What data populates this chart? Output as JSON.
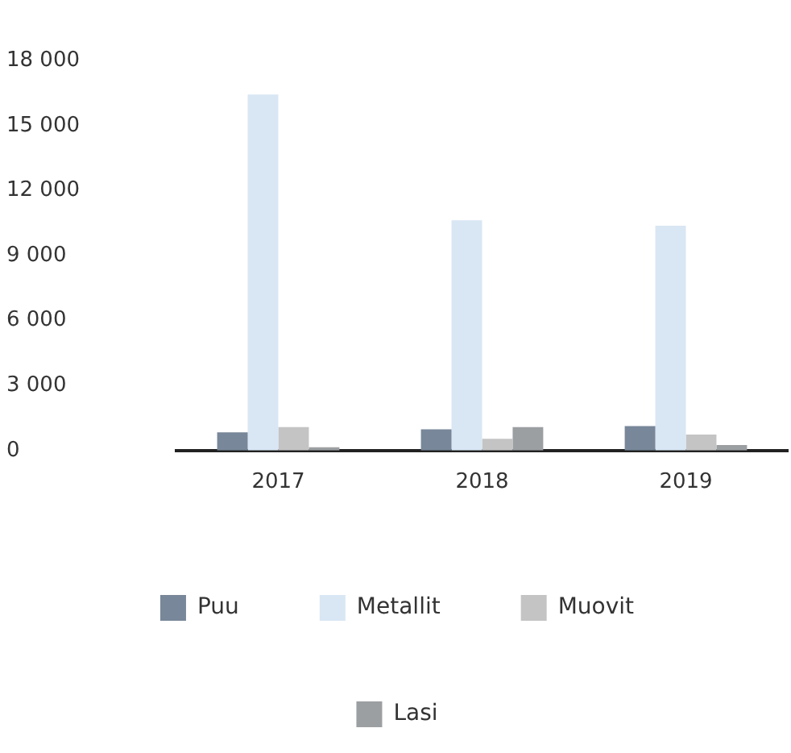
{
  "chart_data": {
    "type": "bar",
    "categories": [
      "2017",
      "2018",
      "2019"
    ],
    "series": [
      {
        "name": "Puu",
        "color": "#788799",
        "values": [
          840,
          980,
          1130
        ]
      },
      {
        "name": "Metallit",
        "color": "#d9e6f4",
        "values": [
          16450,
          10640,
          10390
        ]
      },
      {
        "name": "Muovit",
        "color": "#c4c4c4",
        "values": [
          1080,
          540,
          740
        ]
      },
      {
        "name": "Lasi",
        "color": "#9c9fa2",
        "values": [
          150,
          1080,
          250
        ]
      }
    ],
    "ylim": [
      0,
      18000
    ],
    "yticks": [
      {
        "value": 0,
        "label": "0"
      },
      {
        "value": 3000,
        "label": "3 000"
      },
      {
        "value": 6000,
        "label": "6 000"
      },
      {
        "value": 9000,
        "label": "9 000"
      },
      {
        "value": 12000,
        "label": "12 000"
      },
      {
        "value": 15000,
        "label": "15 000"
      },
      {
        "value": 18000,
        "label": "18 000"
      }
    ],
    "grid": false,
    "legend": "bottom"
  }
}
